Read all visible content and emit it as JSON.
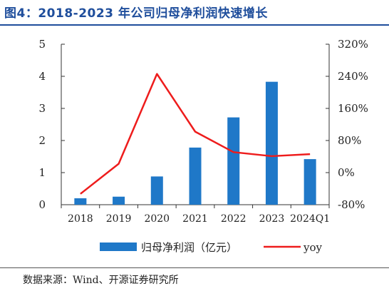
{
  "title": "图4：2018-2023 年公司归母净利润快速增长",
  "source": "数据来源：Wind、开源证券研究所",
  "chart_data": {
    "type": "bar",
    "categories": [
      "2018",
      "2019",
      "2020",
      "2021",
      "2022",
      "2023",
      "2024Q1"
    ],
    "series": [
      {
        "name": "归母净利润（亿元）",
        "type": "bar",
        "axis": "left",
        "color": "#1f78c8",
        "values": [
          0.2,
          0.25,
          0.88,
          1.78,
          2.72,
          3.83,
          1.42
        ]
      },
      {
        "name": "yoy",
        "type": "line",
        "axis": "right",
        "color": "#ee1c1c",
        "values": [
          -53,
          22,
          246,
          102,
          51,
          41,
          46
        ]
      }
    ],
    "ylim_left": [
      0,
      5
    ],
    "yticks_left": [
      "0",
      "1",
      "2",
      "3",
      "4",
      "5"
    ],
    "ylim_right": [
      -80,
      320
    ],
    "yticks_right": [
      "-80%",
      "0%",
      "80%",
      "160%",
      "240%",
      "320%"
    ],
    "legend_position": "bottom",
    "grid": false
  }
}
